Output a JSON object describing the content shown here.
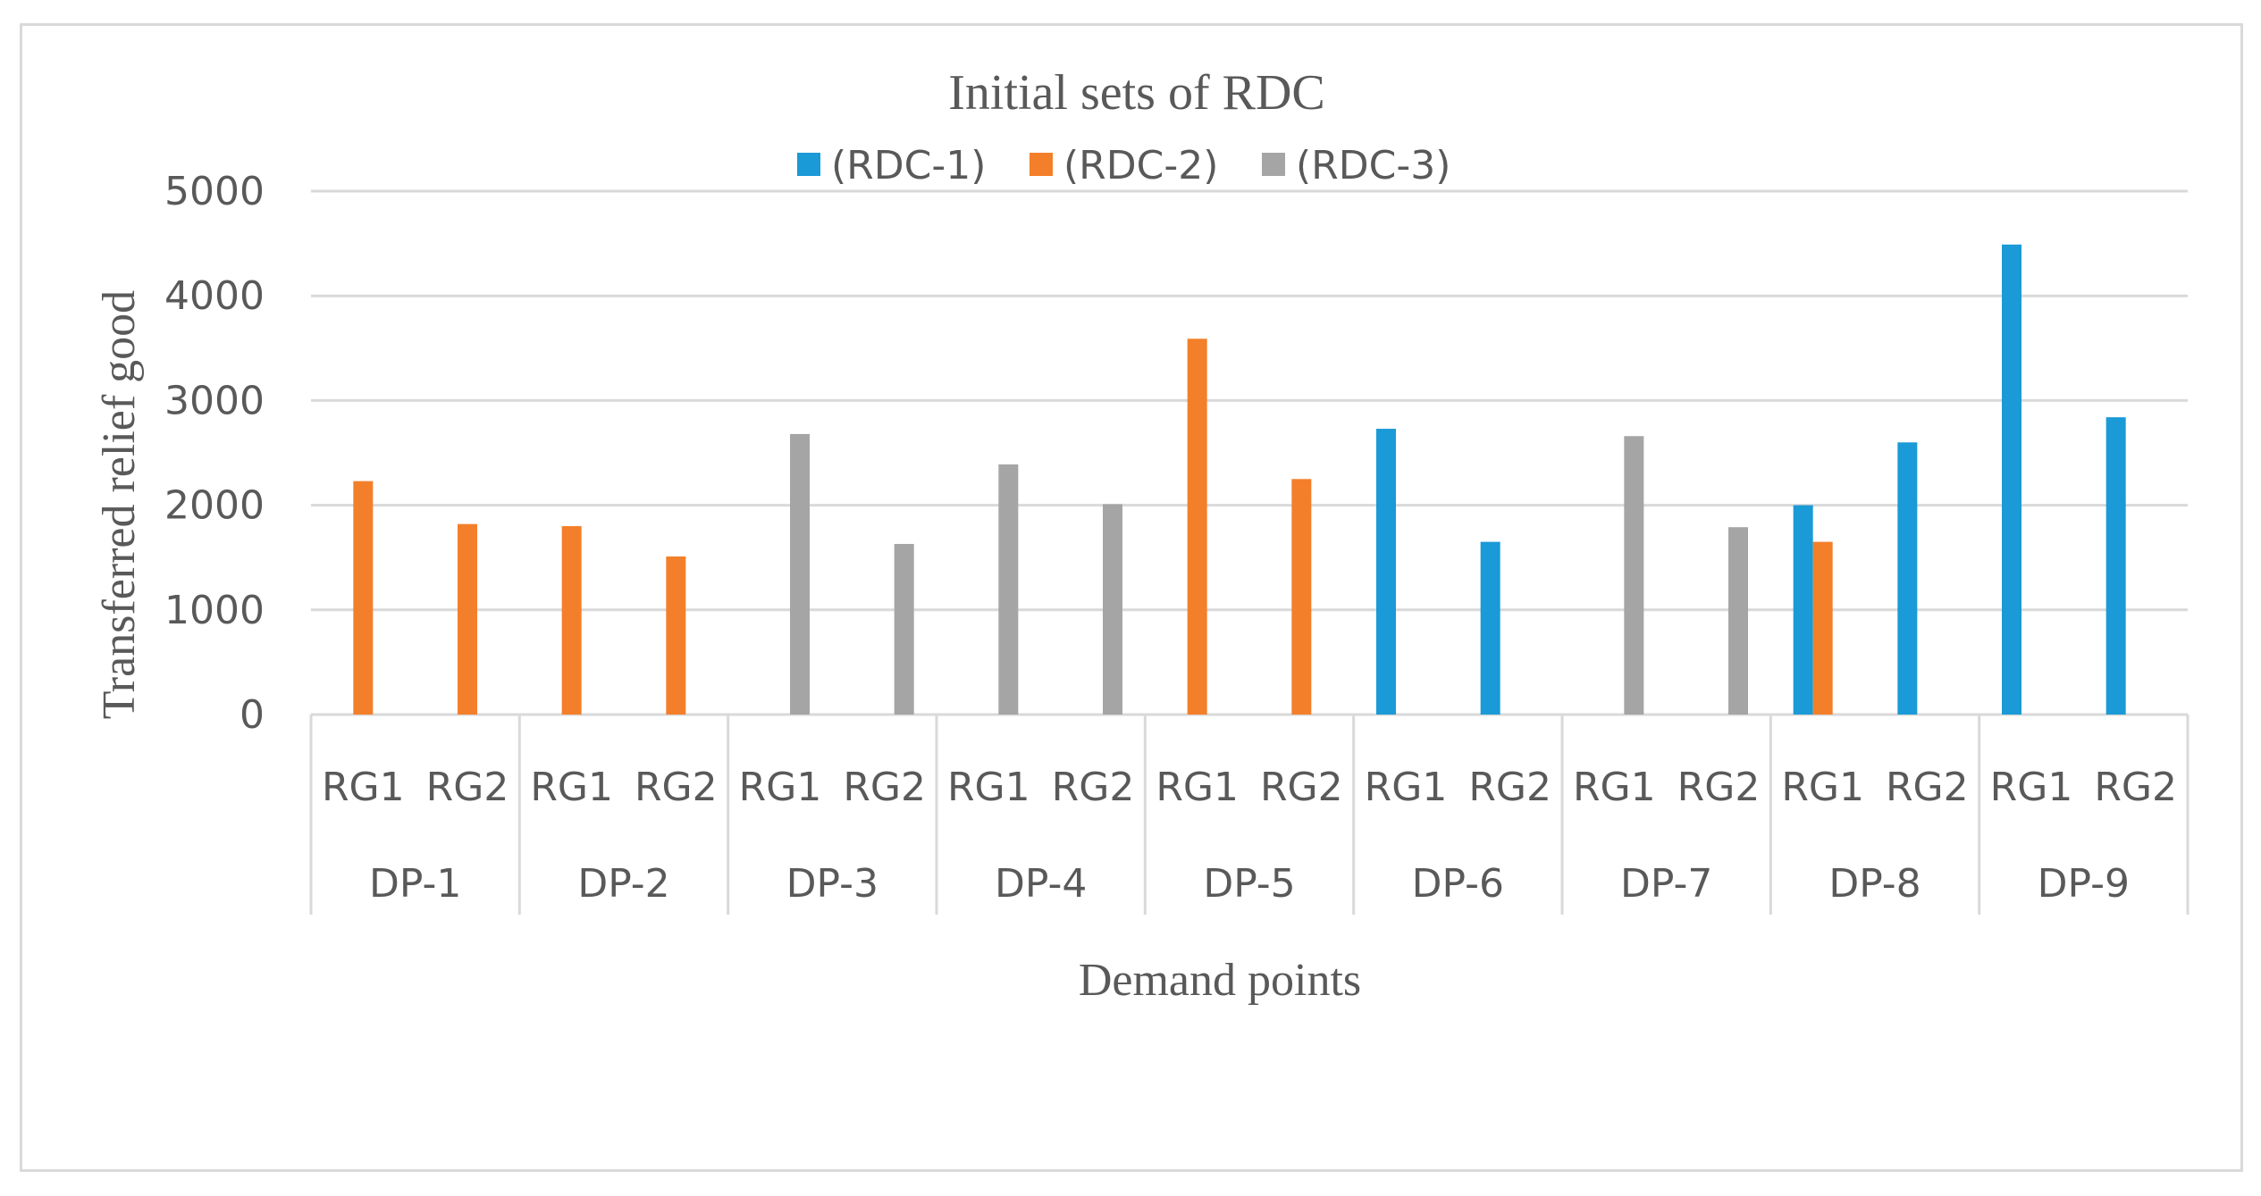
{
  "chart_data": {
    "type": "bar",
    "title": "Initial  sets of RDC",
    "xlabel": "Demand points",
    "ylabel": "Transferred relief good",
    "ylim": [
      0,
      5000
    ],
    "yticks": [
      0,
      1000,
      2000,
      3000,
      4000,
      5000
    ],
    "grid": true,
    "legend_position": "top",
    "groups": [
      "DP-1",
      "DP-2",
      "DP-3",
      "DP-4",
      "DP-5",
      "DP-6",
      "DP-7",
      "DP-8",
      "DP-9"
    ],
    "subcategories": [
      "RG1",
      "RG2"
    ],
    "categories": [
      "DP-1 RG1",
      "DP-1 RG2",
      "DP-2 RG1",
      "DP-2 RG2",
      "DP-3 RG1",
      "DP-3 RG2",
      "DP-4 RG1",
      "DP-4 RG2",
      "DP-5 RG1",
      "DP-5 RG2",
      "DP-6 RG1",
      "DP-6 RG2",
      "DP-7 RG1",
      "DP-7 RG2",
      "DP-8 RG1",
      "DP-8 RG2",
      "DP-9 RG1",
      "DP-9 RG2"
    ],
    "series": [
      {
        "name": "(RDC-1)",
        "color": "#1a9ad6",
        "values": [
          0,
          0,
          0,
          0,
          0,
          0,
          0,
          0,
          0,
          0,
          2730,
          1650,
          0,
          0,
          2000,
          2600,
          4490,
          2840
        ]
      },
      {
        "name": "(RDC-2)",
        "color": "#f47f2a",
        "values": [
          2230,
          1820,
          1800,
          1510,
          0,
          0,
          0,
          0,
          3590,
          2250,
          0,
          0,
          0,
          0,
          1650,
          0,
          0,
          0
        ]
      },
      {
        "name": "(RDC-3)",
        "color": "#a5a5a5",
        "values": [
          0,
          0,
          0,
          0,
          2680,
          1630,
          2390,
          2010,
          0,
          0,
          0,
          0,
          2660,
          1790,
          0,
          0,
          0,
          0
        ]
      }
    ]
  }
}
